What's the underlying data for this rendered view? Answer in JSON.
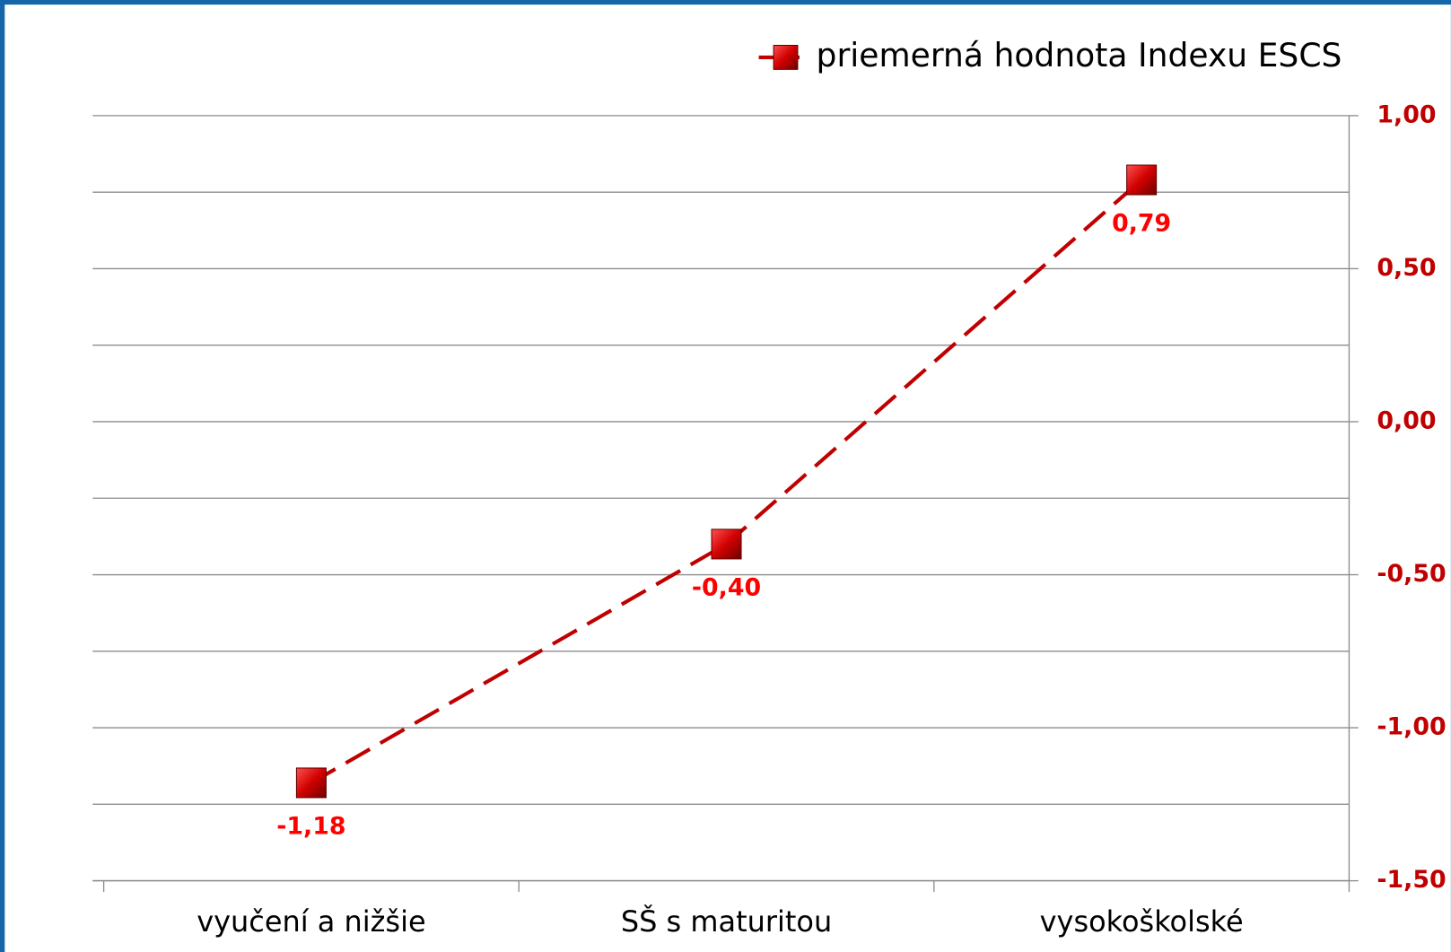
{
  "chart_data": {
    "type": "line",
    "categories": [
      "vyučení a nižšie",
      "SŠ s maturitou",
      "vysokoškolské"
    ],
    "series": [
      {
        "name": "priemerná hodnota Indexu ESCS",
        "color": "#c00000",
        "values": [
          -1.18,
          -0.4,
          0.79
        ],
        "value_labels": [
          "-1,18",
          "-0,40",
          "0,79"
        ]
      }
    ],
    "ylim": [
      -1.5,
      1.0
    ],
    "yticks": [
      {
        "value": 1.0,
        "label": "1,00"
      },
      {
        "value": 0.5,
        "label": "0,50"
      },
      {
        "value": 0.0,
        "label": "0,00"
      },
      {
        "value": -0.5,
        "label": "-0,50"
      },
      {
        "value": -1.0,
        "label": "-1,00"
      },
      {
        "value": -1.5,
        "label": "-1,50"
      }
    ],
    "yticks_minor": [
      0.75,
      0.25,
      -0.25,
      -0.75,
      -1.25
    ],
    "y_axis_side": "right",
    "grid": true,
    "legend": "top-right",
    "dashed": true
  }
}
